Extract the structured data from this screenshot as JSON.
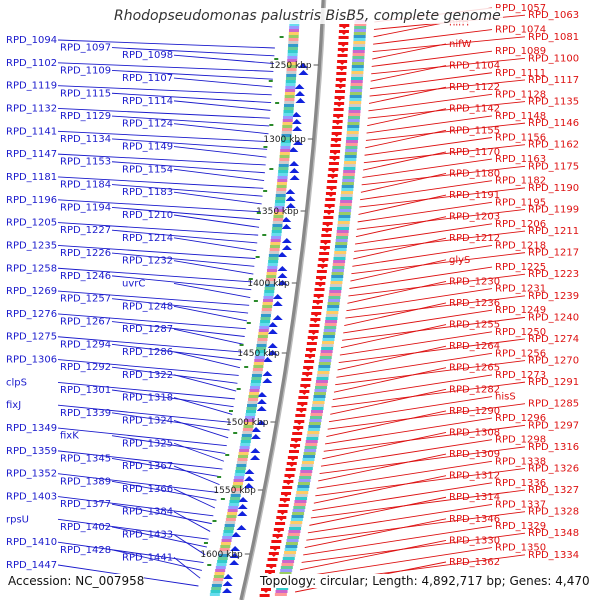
{
  "title": "Rhodopseudomonas palustris BisB5, complete genome",
  "accession": "Accession: NC_007958",
  "topology_line": "Topology: circular; Length: 4,892,717 bp; Genes: 4,470",
  "colors": {
    "left_labels": "#1a1acc",
    "right_labels": "#dd1111",
    "backbone": "#888888",
    "tick_marks": "#2a8a2a",
    "left_arrows": "#1122dd",
    "right_arrows": "#ee1111"
  },
  "scale_ticks": [
    "1250 kbp",
    "1300 kbp",
    "1350 kbp",
    "1400 kbp",
    "1450 kbp",
    "1500 kbp",
    "1550 kbp",
    "1600 kbp"
  ],
  "left_labels": [
    "RPD_1094",
    "RPD_1097",
    "RPD_1098",
    "RPD_1102",
    "RPD_1109",
    "RPD_1107",
    "RPD_1119",
    "RPD_1115",
    "RPD_1114",
    "RPD_1132",
    "RPD_1129",
    "RPD_1124",
    "RPD_1141",
    "RPD_1134",
    "RPD_1149",
    "RPD_1147",
    "RPD_1153",
    "RPD_1154",
    "RPD_1181",
    "RPD_1184",
    "RPD_1183",
    "RPD_1196",
    "RPD_1194",
    "RPD_1210",
    "RPD_1205",
    "RPD_1227",
    "RPD_1214",
    "RPD_1235",
    "RPD_1226",
    "RPD_1232",
    "RPD_1258",
    "RPD_1246",
    "uvrC",
    "RPD_1269",
    "RPD_1257",
    "RPD_1248",
    "RPD_1276",
    "RPD_1267",
    "RPD_1287",
    "RPD_1275",
    "RPD_1294",
    "RPD_1286",
    "RPD_1306",
    "RPD_1292",
    "RPD_1322",
    "clpS",
    "RPD_1301",
    "RPD_1318",
    "fixJ",
    "RPD_1339",
    "RPD_1324",
    "RPD_1349",
    "fixK",
    "RPD_1325",
    "RPD_1359",
    "RPD_1345",
    "RPD_1367",
    "RPD_1352",
    "RPD_1389",
    "RPD_1366",
    "RPD_1403",
    "RPD_1377",
    "RPD_1384",
    "rpsU",
    "RPD_1402",
    "RPD_1433",
    "RPD_1410",
    "RPD_1428",
    "RPD_1441",
    "RPD_1447"
  ],
  "right_labels": [
    "RPD_1057",
    "RPD_1063",
    "nifH",
    "RPD_1074",
    "RPD_1081",
    "nifW",
    "RPD_1089",
    "RPD_1100",
    "RPD_1104",
    "RPD_1111",
    "RPD_1117",
    "RPD_1122",
    "RPD_1128",
    "RPD_1135",
    "RPD_1142",
    "RPD_1148",
    "RPD_1146",
    "RPD_1155",
    "RPD_1156",
    "RPD_1162",
    "RPD_1170",
    "RPD_1163",
    "RPD_1175",
    "RPD_1180",
    "RPD_1182",
    "RPD_1190",
    "RPD_1191",
    "RPD_1195",
    "RPD_1199",
    "RPD_1203",
    "RPD_1206",
    "RPD_1211",
    "RPD_1212",
    "RPD_1218",
    "RPD_1217",
    "glyS",
    "RPD_1225",
    "RPD_1223",
    "RPD_1230",
    "RPD_1231",
    "RPD_1239",
    "RPD_1236",
    "RPD_1249",
    "RPD_1240",
    "RPD_1255",
    "RPD_1250",
    "RPD_1274",
    "RPD_1264",
    "RPD_1256",
    "RPD_1270",
    "RPD_1265",
    "RPD_1273",
    "RPD_1291",
    "RPD_1282",
    "hisS",
    "RPD_1285",
    "RPD_1290",
    "RPD_1296",
    "RPD_1297",
    "RPD_1308",
    "RPD_1298",
    "RPD_1316",
    "RPD_1309",
    "RPD_1338",
    "RPD_1326",
    "RPD_1312",
    "RPD_1336",
    "RPD_1327",
    "RPD_1314",
    "RPD_1337",
    "RPD_1328",
    "RPD_1346",
    "RPD_1329",
    "RPD_1348",
    "RPD_1330",
    "RPD_1350",
    "RPD_1334",
    "RPD_1362"
  ]
}
